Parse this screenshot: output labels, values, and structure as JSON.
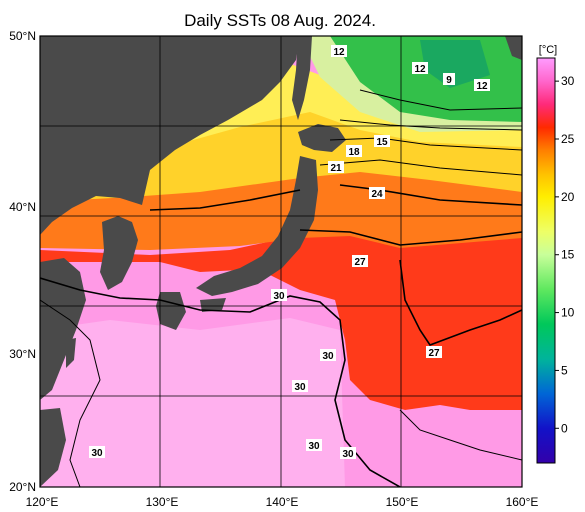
{
  "title": "Daily SSTs 08 Aug. 2024.",
  "lat_labels": [
    "50°N",
    "40°N",
    "30°N",
    "20°N"
  ],
  "lon_labels": [
    "120°E",
    "130°E",
    "140°E",
    "150°E",
    "160°E"
  ],
  "colorbar": {
    "unit": "[°C]",
    "ticks": [
      "30",
      "25",
      "20",
      "15",
      "10",
      "5",
      "0"
    ],
    "range": [
      -3,
      32
    ],
    "stops": [
      {
        "t": 32,
        "c": "#ff9cff"
      },
      {
        "t": 30,
        "c": "#ff66cc"
      },
      {
        "t": 28,
        "c": "#ff2a7a"
      },
      {
        "t": 26,
        "c": "#ff2a00"
      },
      {
        "t": 24,
        "c": "#ff8000"
      },
      {
        "t": 22,
        "c": "#ffc000"
      },
      {
        "t": 20,
        "c": "#ffee00"
      },
      {
        "t": 17,
        "c": "#eeff66"
      },
      {
        "t": 15,
        "c": "#c8ff9a"
      },
      {
        "t": 12,
        "c": "#5fe85f"
      },
      {
        "t": 9,
        "c": "#00c85a"
      },
      {
        "t": 6,
        "c": "#00b49b"
      },
      {
        "t": 3,
        "c": "#0066d6"
      },
      {
        "t": 0,
        "c": "#1212c8"
      },
      {
        "t": -3,
        "c": "#3300aa"
      }
    ]
  },
  "contour_labels": [
    "12",
    "12",
    "9",
    "12",
    "18",
    "15",
    "21",
    "24",
    "27",
    "27",
    "30",
    "30",
    "30",
    "30",
    "30",
    "30"
  ],
  "colors": {
    "land": "#4a4a4a",
    "zone_30": "#ff9ae6",
    "zone_27": "#ff3a1a",
    "zone_24": "#ff7a1a",
    "zone_21": "#ffd22a",
    "zone_18": "#e8f08a",
    "zone_15": "#b8e88a",
    "zone_12": "#33c04a"
  }
}
